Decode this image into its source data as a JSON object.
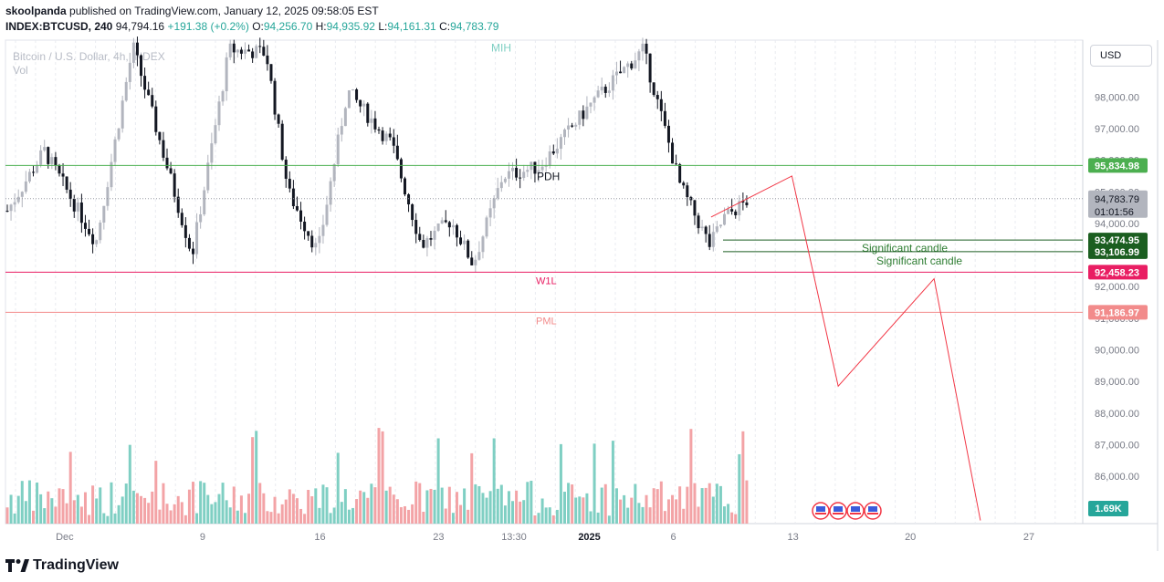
{
  "header": {
    "author": "skoolpanda",
    "published_text": "published on TradingView.com, January 12, 2025 09:58:05 EST",
    "symbol": "INDEX:BTCUSD, 240",
    "last": "94,794.16",
    "change": "+191.38 (+0.2%)",
    "o_label": "O:",
    "o": "94,256.70",
    "h_label": "H:",
    "h": "94,935.92",
    "l_label": "L:",
    "l": "94,161.31",
    "c_label": "C:",
    "c": "94,783.79"
  },
  "legend": {
    "title": "Bitcoin / U.S. Dollar, 4h, INDEX",
    "vol": "Vol"
  },
  "currency_button": "USD",
  "footer": {
    "brand": "TradingView"
  },
  "colors": {
    "up": "#26a69a",
    "down": "#131722",
    "hollow_up": "#b2b5be",
    "vol_up": "#7fcfc3",
    "vol_down": "#f3a3a6",
    "resistance_green": "#4caf50",
    "support_red": "#e91e63",
    "pml_pink": "#f28b8b",
    "projection": "#f23645"
  },
  "chart_data": {
    "type": "candlestick",
    "symbol": "BTCUSD",
    "timeframe": "4h",
    "y_axis": {
      "range": [
        84500,
        99800
      ],
      "ticks": [
        {
          "value": 98000,
          "label": "98,000.00"
        },
        {
          "value": 97000,
          "label": "97,000.00"
        },
        {
          "value": 96000,
          "label": "96,000.00"
        },
        {
          "value": 95000,
          "label": "95,000.00"
        },
        {
          "value": 94000,
          "label": "94,000.00"
        },
        {
          "value": 93000,
          "label": "93,000.00"
        },
        {
          "value": 92000,
          "label": "92,000.00"
        },
        {
          "value": 91000,
          "label": "91,000.00"
        },
        {
          "value": 90000,
          "label": "90,000.00"
        },
        {
          "value": 89000,
          "label": "89,000.00"
        },
        {
          "value": 88000,
          "label": "88,000.00"
        },
        {
          "value": 87000,
          "label": "87,000.00"
        },
        {
          "value": 86000,
          "label": "86,000.00"
        }
      ]
    },
    "x_axis": {
      "ticks": [
        {
          "label": "Dec",
          "pos": 0.055
        },
        {
          "label": "9",
          "pos": 0.183
        },
        {
          "label": "16",
          "pos": 0.292
        },
        {
          "label": "23",
          "pos": 0.402
        },
        {
          "label": "13:30",
          "pos": 0.472
        },
        {
          "label": "2025",
          "pos": 0.542,
          "bold": true
        },
        {
          "label": "6",
          "pos": 0.62
        },
        {
          "label": "13",
          "pos": 0.731
        },
        {
          "label": "20",
          "pos": 0.84
        },
        {
          "label": "27",
          "pos": 0.95
        }
      ]
    },
    "levels": [
      {
        "name": "resistance",
        "value": 95834.98,
        "label": "95,834.98",
        "color": "#4caf50"
      },
      {
        "name": "significant-candle-1",
        "value": 93474.95,
        "label": "93,474.95",
        "color": "#1b5e20",
        "annotation": "Significant candle"
      },
      {
        "name": "significant-candle-2",
        "value": 93106.99,
        "label": "93,106.99",
        "color": "#1b5e20",
        "annotation": "Significant candle"
      },
      {
        "name": "w1l",
        "value": 92458.23,
        "label": "92,458.23",
        "color": "#e91e63",
        "annotation": "W1L"
      },
      {
        "name": "pml",
        "value": 91186.97,
        "label": "91,186.97",
        "color": "#f28b8b",
        "annotation": "PML"
      }
    ],
    "last_price": {
      "value": 94783.79,
      "label": "94,783.79",
      "countdown": "01:01:56"
    },
    "volume_label": "1.69K",
    "annotations": [
      {
        "text": "PDH",
        "price": 95480
      },
      {
        "text": "MIH",
        "price": 99550
      }
    ],
    "projection_path": [
      {
        "t": 0.655,
        "price": 94200
      },
      {
        "t": 0.73,
        "price": 95500
      },
      {
        "t": 0.773,
        "price": 88850
      },
      {
        "t": 0.862,
        "price": 92250
      },
      {
        "t": 0.905,
        "price": 84600
      }
    ],
    "event_flags": {
      "count": 4,
      "type": "us-economic-event"
    }
  }
}
